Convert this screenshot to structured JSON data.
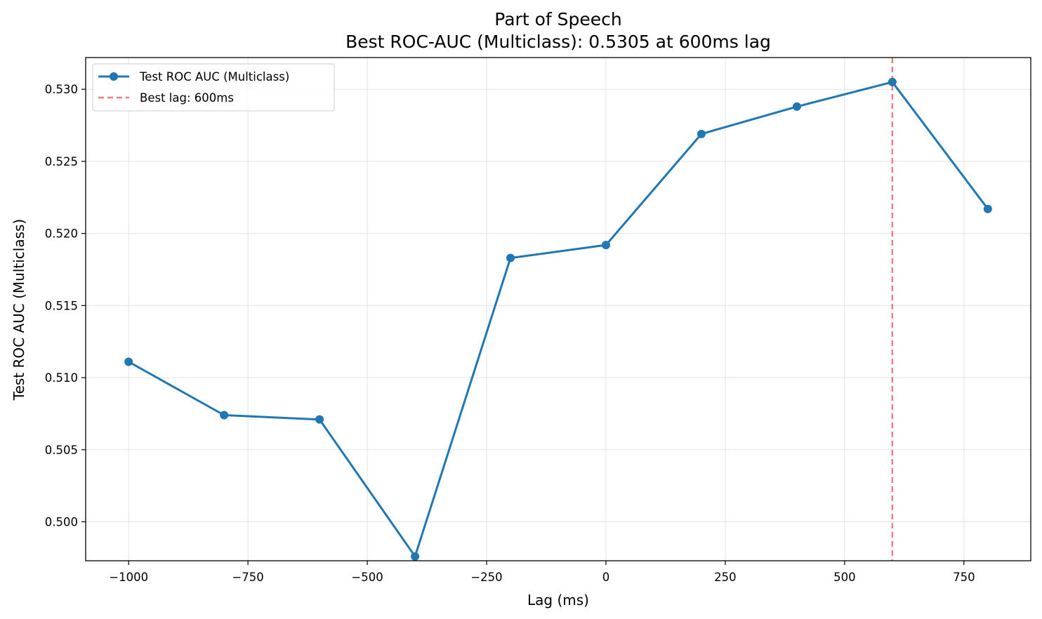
{
  "chart_data": {
    "type": "line",
    "title": "Part of Speech",
    "subtitle": "Best ROC-AUC (Multiclass): 0.5305 at 600ms lag",
    "xlabel": "Lag (ms)",
    "ylabel": "Test ROC AUC (Multiclass)",
    "xlim": [
      -1090,
      890
    ],
    "ylim": [
      0.4973,
      0.5322
    ],
    "x_ticks": [
      -1000,
      -750,
      -500,
      -250,
      0,
      250,
      500,
      750
    ],
    "x_tick_labels": [
      "−1000",
      "−750",
      "−500",
      "−250",
      "0",
      "250",
      "500",
      "750"
    ],
    "y_ticks": [
      0.5,
      0.505,
      0.51,
      0.515,
      0.52,
      0.525,
      0.53
    ],
    "y_tick_labels": [
      "0.500",
      "0.505",
      "0.510",
      "0.515",
      "0.520",
      "0.525",
      "0.530"
    ],
    "grid": true,
    "legend_position": "top-left",
    "series": [
      {
        "name": "Test ROC AUC (Multiclass)",
        "color": "#1f77b4",
        "x": [
          -1000,
          -800,
          -600,
          -400,
          -200,
          0,
          200,
          400,
          600,
          800
        ],
        "y": [
          0.5111,
          0.5074,
          0.5071,
          0.4976,
          0.5183,
          0.5192,
          0.5269,
          0.5288,
          0.5305,
          0.5217
        ]
      }
    ],
    "best_lag_line": {
      "name": "Best lag: 600ms",
      "x": 600,
      "color": "#f08080"
    }
  }
}
